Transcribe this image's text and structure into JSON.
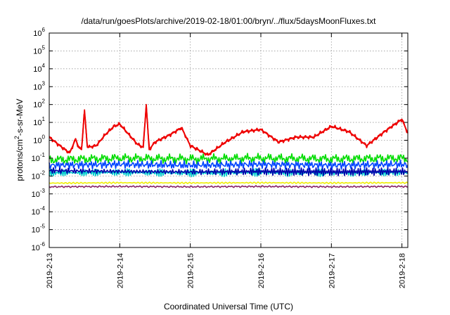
{
  "chart_data": {
    "type": "line",
    "title": "/data/run/goesPlots/archive/2019-02-18/01:00/bryn/../flux/5daysMoonFluxes.txt",
    "xlabel": "Coordinated Universal Time (UTC)",
    "ylabel": "protons/cm²-s-sr-MeV",
    "yscale": "log",
    "xlim": [
      "2019-02-13",
      "2019-02-18 02:00"
    ],
    "ylim": [
      1e-06,
      1000000.0
    ],
    "grid": true,
    "x_ticks": [
      "2019-2-13",
      "2019-2-14",
      "2019-2-15",
      "2019-2-16",
      "2019-2-17",
      "2019-2-18"
    ],
    "y_ticks": [
      "10-6",
      "10-5",
      "10-4",
      "10-3",
      "10-2",
      "10-1",
      "100",
      "101",
      "102",
      "103",
      "104",
      "105",
      "106"
    ],
    "series": [
      {
        "color": "#ee0000",
        "x": [
          "2019-02-13 00:00",
          "2019-02-13 03:00",
          "2019-02-13 06:00",
          "2019-02-13 07:00",
          "2019-02-13 09:00",
          "2019-02-13 10:00",
          "2019-02-13 11:00",
          "2019-02-13 12:00",
          "2019-02-13 12:30",
          "2019-02-13 13:00",
          "2019-02-13 16:00",
          "2019-02-13 19:00",
          "2019-02-13 22:00",
          "2019-02-14 00:00",
          "2019-02-14 06:00",
          "2019-02-14 08:00",
          "2019-02-14 09:00",
          "2019-02-14 10:00",
          "2019-02-14 12:00",
          "2019-02-14 17:00",
          "2019-02-14 21:00",
          "2019-02-15 00:00",
          "2019-02-15 06:00",
          "2019-02-15 12:00",
          "2019-02-15 18:00",
          "2019-02-16 00:00",
          "2019-02-16 06:00",
          "2019-02-16 12:00",
          "2019-02-16 18:00",
          "2019-02-17 00:00",
          "2019-02-17 06:00",
          "2019-02-17 12:00",
          "2019-02-17 18:00",
          "2019-02-18 00:00",
          "2019-02-18 02:00"
        ],
        "values": [
          1.5,
          0.6,
          0.25,
          0.2,
          1.2,
          0.4,
          0.3,
          50,
          4,
          0.4,
          0.5,
          2,
          6,
          8,
          0.6,
          0.4,
          100,
          0.3,
          0.8,
          2,
          5,
          0.5,
          0.15,
          0.8,
          3,
          4,
          0.8,
          1.5,
          1.5,
          6,
          3,
          0.5,
          3,
          15,
          2.5
        ]
      },
      {
        "color": "#00dd00",
        "x": [
          "2019-02-13 00:00",
          "2019-02-14 00:00",
          "2019-02-15 00:00",
          "2019-02-16 00:00",
          "2019-02-17 00:00",
          "2019-02-18 00:00",
          "2019-02-18 02:00"
        ],
        "values": [
          0.08,
          0.1,
          0.09,
          0.1,
          0.09,
          0.1,
          0.09
        ]
      },
      {
        "color": "#0044ff",
        "x": [
          "2019-02-13 00:00",
          "2019-02-14 00:00",
          "2019-02-15 00:00",
          "2019-02-16 00:00",
          "2019-02-17 00:00",
          "2019-02-18 00:00",
          "2019-02-18 02:00"
        ],
        "values": [
          0.04,
          0.045,
          0.04,
          0.045,
          0.04,
          0.045,
          0.04
        ]
      },
      {
        "color": "#00cccc",
        "x": [
          "2019-02-13 00:00",
          "2019-02-14 00:00",
          "2019-02-15 00:00",
          "2019-02-16 00:00",
          "2019-02-17 00:00",
          "2019-02-18 00:00",
          "2019-02-18 02:00"
        ],
        "values": [
          0.015,
          0.016,
          0.015,
          0.016,
          0.015,
          0.016,
          0.015
        ]
      },
      {
        "color": "#0000aa",
        "x": [
          "2019-02-13 00:00",
          "2019-02-14 00:00",
          "2019-02-15 00:00",
          "2019-02-16 00:00",
          "2019-02-17 00:00",
          "2019-02-18 00:00",
          "2019-02-18 02:00"
        ],
        "values": [
          0.02,
          0.018,
          0.017,
          0.018,
          0.017,
          0.018,
          0.017
        ]
      },
      {
        "color": "#eeee00",
        "x": [
          "2019-02-13 00:00",
          "2019-02-14 00:00",
          "2019-02-15 00:00",
          "2019-02-16 00:00",
          "2019-02-17 00:00",
          "2019-02-18 00:00",
          "2019-02-18 02:00"
        ],
        "values": [
          0.004,
          0.0042,
          0.0041,
          0.0042,
          0.0041,
          0.0042,
          0.0041
        ]
      },
      {
        "color": "#882266",
        "x": [
          "2019-02-13 00:00",
          "2019-02-14 00:00",
          "2019-02-15 00:00",
          "2019-02-16 00:00",
          "2019-02-17 00:00",
          "2019-02-18 00:00",
          "2019-02-18 02:00"
        ],
        "values": [
          0.0025,
          0.0026,
          0.0025,
          0.0026,
          0.0025,
          0.0026,
          0.0025
        ]
      }
    ]
  }
}
